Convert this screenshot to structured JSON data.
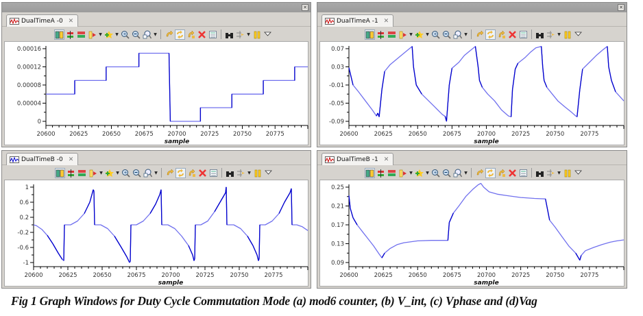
{
  "panels": [
    {
      "tab_label": "DualTimeA -0",
      "close_glyph": "✕"
    },
    {
      "tab_label": "DualTimeA -1",
      "close_glyph": "✕"
    },
    {
      "tab_label": "DualTimeB -0",
      "close_glyph": "✕"
    },
    {
      "tab_label": "DualTimeB -1",
      "close_glyph": "✕"
    }
  ],
  "window_button": "✕",
  "toolbar_icons": [
    "columns-icon",
    "split-horizontal-icon",
    "split-red-icon",
    "marker-icon",
    "add-star-icon",
    "zoom-in-icon",
    "zoom-out-icon",
    "zoom-fit-icon",
    "sync-icon",
    "sync-h-icon",
    "sync-v-icon",
    "delete-icon",
    "list-icon",
    "binoculars-icon",
    "arrows-icon",
    "pause-icon",
    "view-menu-icon"
  ],
  "caption": "Fig 1 Graph Windows for Duty Cycle Commutation Mode (a) mod6 counter, (b) V_int, (c) Vphase and (d)Vag",
  "colors": {
    "line": "#0000cc",
    "line_light": "#7070ee",
    "axis_label": "#800040",
    "panel_bg": "#d6d3ce",
    "titlebar": "#a2a2a2"
  },
  "chart_data": [
    {
      "type": "line",
      "title": "DualTimeA -0",
      "xlabel": "sample",
      "ylabel": "",
      "x_ticks": [
        "20600",
        "20625",
        "20650",
        "20675",
        "20700",
        "20725",
        "20750",
        "20775"
      ],
      "y_ticks": [
        "0.00016",
        "0.00012",
        "0.00008",
        "0.00004",
        "0"
      ],
      "xlim": [
        20600,
        20800
      ],
      "ylim": [
        0,
        0.00016
      ],
      "grid": false,
      "series": [
        {
          "name": "mod6 counter",
          "x": [
            20600,
            20622,
            20622,
            20646,
            20646,
            20671,
            20671,
            20694,
            20695,
            20718,
            20718,
            20742,
            20742,
            20766,
            20766,
            20790,
            20790,
            20800
          ],
          "y": [
            6e-05,
            6e-05,
            9e-05,
            9e-05,
            0.00012,
            0.00012,
            0.00015,
            0.00015,
            0,
            0,
            3e-05,
            3e-05,
            6e-05,
            6e-05,
            9e-05,
            9e-05,
            0.00012,
            0.00012
          ]
        }
      ]
    },
    {
      "type": "line",
      "title": "DualTimeA -1",
      "xlabel": "sample",
      "ylabel": "",
      "x_ticks": [
        "20600",
        "20625",
        "20650",
        "20675",
        "20700",
        "20725",
        "20750",
        "20775"
      ],
      "y_ticks": [
        "0.07",
        "0.03",
        "-0.01",
        "-0.05",
        "-0.09"
      ],
      "xlim": [
        20600,
        20800
      ],
      "ylim": [
        -0.09,
        0.078
      ],
      "grid": false,
      "series": [
        {
          "name": "V_int",
          "x": [
            20600,
            20603,
            20607,
            20612,
            20617,
            20620,
            20621,
            20622,
            20624,
            20626,
            20630,
            20636,
            20640,
            20644,
            20646,
            20647,
            20649,
            20653,
            20658,
            20663,
            20668,
            20670,
            20671,
            20673,
            20675,
            20680,
            20684,
            20688,
            20692,
            20694,
            20695,
            20697,
            20701,
            20706,
            20711,
            20716,
            20718,
            20719,
            20721,
            20723,
            20728,
            20732,
            20736,
            20740,
            20741,
            20742,
            20744,
            20748,
            20752,
            20757,
            20762,
            20765,
            20766,
            20768,
            20770,
            20775,
            20780,
            20785,
            20788,
            20789,
            20791,
            20794,
            20800
          ],
          "y": [
            0.028,
            -0.01,
            -0.025,
            -0.045,
            -0.065,
            -0.078,
            -0.072,
            -0.08,
            -0.02,
            0.02,
            0.035,
            0.05,
            0.06,
            0.07,
            0.075,
            0.03,
            -0.01,
            -0.03,
            -0.045,
            -0.06,
            -0.075,
            -0.079,
            -0.09,
            -0.01,
            0.027,
            0.04,
            0.055,
            0.065,
            0.075,
            0.03,
            0.0,
            -0.015,
            -0.03,
            -0.045,
            -0.065,
            -0.078,
            -0.08,
            -0.02,
            0.025,
            0.038,
            0.05,
            0.062,
            0.072,
            0.075,
            0.03,
            0.0,
            -0.015,
            -0.03,
            -0.045,
            -0.058,
            -0.07,
            -0.078,
            -0.08,
            -0.02,
            0.025,
            0.04,
            0.055,
            0.068,
            0.075,
            0.03,
            0.0,
            -0.025,
            -0.045
          ]
        }
      ]
    },
    {
      "type": "line",
      "title": "DualTimeB -0",
      "xlabel": "sample",
      "ylabel": "",
      "x_ticks": [
        "20600",
        "20625",
        "20650",
        "20675",
        "20700",
        "20725",
        "20750",
        "20775"
      ],
      "y_ticks": [
        "1",
        "0.6",
        "0.2",
        "-0.2",
        "-0.6",
        "-1"
      ],
      "xlim": [
        20600,
        20800
      ],
      "ylim": [
        -1.0,
        1.0
      ],
      "grid": false,
      "series": [
        {
          "name": "Vphase",
          "x": [
            20600,
            20602,
            20606,
            20610,
            20614,
            20618,
            20621,
            20622,
            20622.5,
            20627,
            20632,
            20637,
            20641,
            20643.5,
            20644,
            20644.5,
            20649,
            20654,
            20659,
            20664,
            20668,
            20670,
            20670.5,
            20671,
            20675,
            20680,
            20685,
            20689,
            20692,
            20693,
            20693.5,
            20698,
            20703,
            20708,
            20713,
            20716,
            20717,
            20717.5,
            20718,
            20722,
            20727,
            20732,
            20736,
            20740,
            20740.5,
            20741,
            20746,
            20751,
            20756,
            20760,
            20763,
            20764,
            20764.5,
            20765,
            20769,
            20774,
            20779,
            20783,
            20787,
            20788,
            20788.5,
            20792,
            20796,
            20800
          ],
          "y": [
            0,
            -0.02,
            -0.12,
            -0.28,
            -0.5,
            -0.75,
            -0.92,
            -0.95,
            0,
            0,
            0.1,
            0.3,
            0.6,
            0.93,
            0.9,
            0,
            0,
            -0.1,
            -0.3,
            -0.6,
            -0.85,
            -1.0,
            -0.98,
            0,
            0,
            0.1,
            0.3,
            0.55,
            0.8,
            0.93,
            0,
            0,
            -0.1,
            -0.3,
            -0.55,
            -0.8,
            -0.95,
            -0.9,
            0,
            0,
            0.1,
            0.35,
            0.6,
            0.85,
            1.0,
            0,
            0,
            -0.1,
            -0.3,
            -0.55,
            -0.8,
            -0.95,
            -0.9,
            0,
            0,
            0.1,
            0.3,
            0.6,
            0.85,
            0.96,
            0,
            0,
            -0.05,
            -0.15
          ]
        }
      ]
    },
    {
      "type": "line",
      "title": "DualTimeB -1",
      "xlabel": "sample",
      "ylabel": "",
      "x_ticks": [
        "20600",
        "20625",
        "20650",
        "20675",
        "20700",
        "20725",
        "20750",
        "20775"
      ],
      "y_ticks": [
        "0.25",
        "0.21",
        "0.17",
        "0.13",
        "0.09"
      ],
      "xlim": [
        20600,
        20800
      ],
      "ylim": [
        0.088,
        0.263
      ],
      "grid": false,
      "series": [
        {
          "name": "Vag",
          "x": [
            20600,
            20601,
            20603,
            20606,
            20610,
            20614,
            20618,
            20622,
            20624,
            20626,
            20630,
            20635,
            20640,
            20650,
            20660,
            20670,
            20672,
            20673,
            20676,
            20680,
            20685,
            20690,
            20694,
            20696,
            20698,
            20702,
            20708,
            20715,
            20725,
            20735,
            20743,
            20744,
            20746,
            20750,
            20755,
            20760,
            20765,
            20768,
            20769,
            20772,
            20778,
            20784,
            20790,
            20795,
            20800
          ],
          "y": [
            0.232,
            0.205,
            0.185,
            0.17,
            0.155,
            0.14,
            0.125,
            0.108,
            0.1,
            0.11,
            0.12,
            0.128,
            0.132,
            0.136,
            0.137,
            0.137,
            0.137,
            0.175,
            0.195,
            0.21,
            0.23,
            0.245,
            0.255,
            0.258,
            0.25,
            0.24,
            0.235,
            0.232,
            0.228,
            0.226,
            0.225,
            0.21,
            0.18,
            0.165,
            0.145,
            0.125,
            0.11,
            0.095,
            0.105,
            0.115,
            0.122,
            0.128,
            0.133,
            0.136,
            0.138
          ]
        }
      ]
    }
  ]
}
